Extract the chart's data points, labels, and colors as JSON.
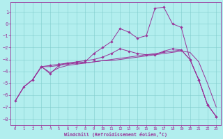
{
  "xlabel": "Windchill (Refroidissement éolien,°C)",
  "bg_color": "#b2eeee",
  "grid_color": "#80cccc",
  "line_color": "#993399",
  "xlim": [
    -0.5,
    23.5
  ],
  "ylim": [
    -8.5,
    1.8
  ],
  "yticks": [
    1,
    0,
    -1,
    -2,
    -3,
    -4,
    -5,
    -6,
    -7,
    -8
  ],
  "xticks": [
    0,
    1,
    2,
    3,
    4,
    5,
    6,
    7,
    8,
    9,
    10,
    11,
    12,
    13,
    14,
    15,
    16,
    17,
    18,
    19,
    20,
    21,
    22,
    23
  ],
  "line1_x": [
    0,
    1,
    2,
    3,
    4,
    5,
    6,
    7,
    8,
    9,
    10,
    11,
    12,
    13,
    14,
    15,
    16,
    17,
    18,
    19,
    20,
    21,
    22,
    23
  ],
  "line1_y": [
    -6.5,
    -5.3,
    -4.7,
    -3.6,
    -3.6,
    -3.5,
    -3.4,
    -3.3,
    -3.3,
    -3.2,
    -3.1,
    -3.1,
    -3.0,
    -2.9,
    -2.8,
    -2.7,
    -2.6,
    -2.5,
    -2.4,
    -2.3,
    -2.4,
    -3.2,
    -5.0,
    -7.0
  ],
  "line2_x": [
    0,
    1,
    2,
    3,
    4,
    5,
    6,
    7,
    8,
    9,
    10,
    11,
    12,
    13,
    14,
    15,
    16,
    17,
    18,
    19,
    20,
    21,
    22,
    23
  ],
  "line2_y": [
    -6.5,
    -5.3,
    -4.7,
    -3.6,
    -4.1,
    -3.7,
    -3.5,
    -3.4,
    -3.3,
    -3.2,
    -3.1,
    -3.0,
    -2.9,
    -2.8,
    -2.7,
    -2.6,
    -2.5,
    -2.4,
    -2.3,
    -2.2,
    -3.0,
    -4.7,
    -6.8,
    -7.8
  ],
  "line3_x": [
    2,
    3,
    4,
    5,
    6,
    7,
    8,
    9,
    10,
    11,
    12,
    13,
    14,
    15,
    16,
    17,
    18,
    19,
    20,
    21,
    22,
    23
  ],
  "line3_y": [
    -4.7,
    -3.6,
    -3.5,
    -3.4,
    -3.3,
    -3.2,
    -3.1,
    -3.0,
    -2.8,
    -2.5,
    -2.1,
    -2.3,
    -2.5,
    -2.6,
    -2.6,
    -2.3,
    -2.1,
    -2.2,
    -3.0,
    -4.7,
    -6.8,
    -7.8
  ],
  "line4_x": [
    0,
    1,
    2,
    3,
    4,
    5,
    6,
    7,
    8,
    9,
    10,
    11,
    12,
    13,
    14,
    15,
    16,
    17,
    18,
    19,
    20,
    21,
    22,
    23
  ],
  "line4_y": [
    -6.5,
    -5.3,
    -4.7,
    -3.6,
    -4.2,
    -3.5,
    -3.3,
    -3.3,
    -3.2,
    -2.5,
    -2.0,
    -1.5,
    -0.4,
    -0.7,
    -1.2,
    -1.0,
    1.3,
    1.4,
    0.0,
    -0.3,
    -3.0,
    -4.7,
    -6.8,
    -7.8
  ],
  "figsize": [
    3.2,
    2.0
  ],
  "dpi": 100
}
